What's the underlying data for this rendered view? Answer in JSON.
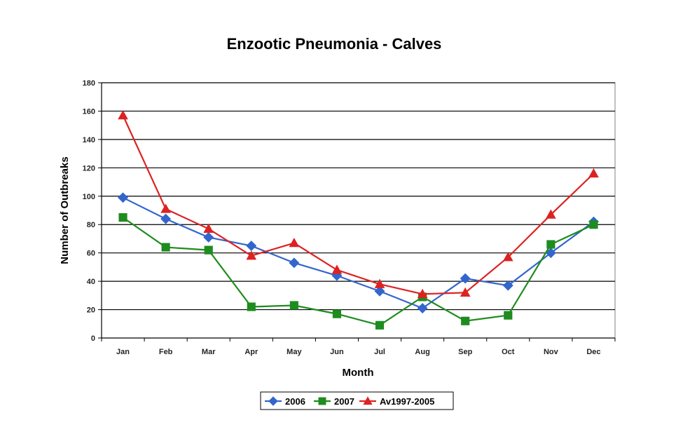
{
  "chart_data": {
    "type": "line",
    "title": "Enzootic Pneumonia - Calves",
    "xlabel": "Month",
    "ylabel": "Number of Outbreaks",
    "ylim": [
      0,
      180
    ],
    "yticks": [
      0,
      20,
      40,
      60,
      80,
      100,
      120,
      140,
      160,
      180
    ],
    "categories": [
      "Jan",
      "Feb",
      "Mar",
      "Apr",
      "May",
      "Jun",
      "Jul",
      "Aug",
      "Sep",
      "Oct",
      "Nov",
      "Dec"
    ],
    "grid": "horizontal",
    "legend_position": "bottom",
    "series": [
      {
        "name": "2006",
        "color": "#3366CC",
        "marker": "diamond",
        "values": [
          99,
          84,
          71,
          65,
          53,
          44,
          33,
          21,
          42,
          37,
          60,
          82
        ]
      },
      {
        "name": "2007",
        "color": "#1E8C1E",
        "marker": "square",
        "values": [
          85,
          64,
          62,
          22,
          23,
          17,
          9,
          29,
          12,
          16,
          66,
          80
        ]
      },
      {
        "name": "Av1997-2005",
        "color": "#DD2222",
        "marker": "triangle",
        "values": [
          157,
          91,
          77,
          58,
          67,
          48,
          38,
          31,
          32,
          57,
          87,
          116
        ]
      }
    ]
  }
}
